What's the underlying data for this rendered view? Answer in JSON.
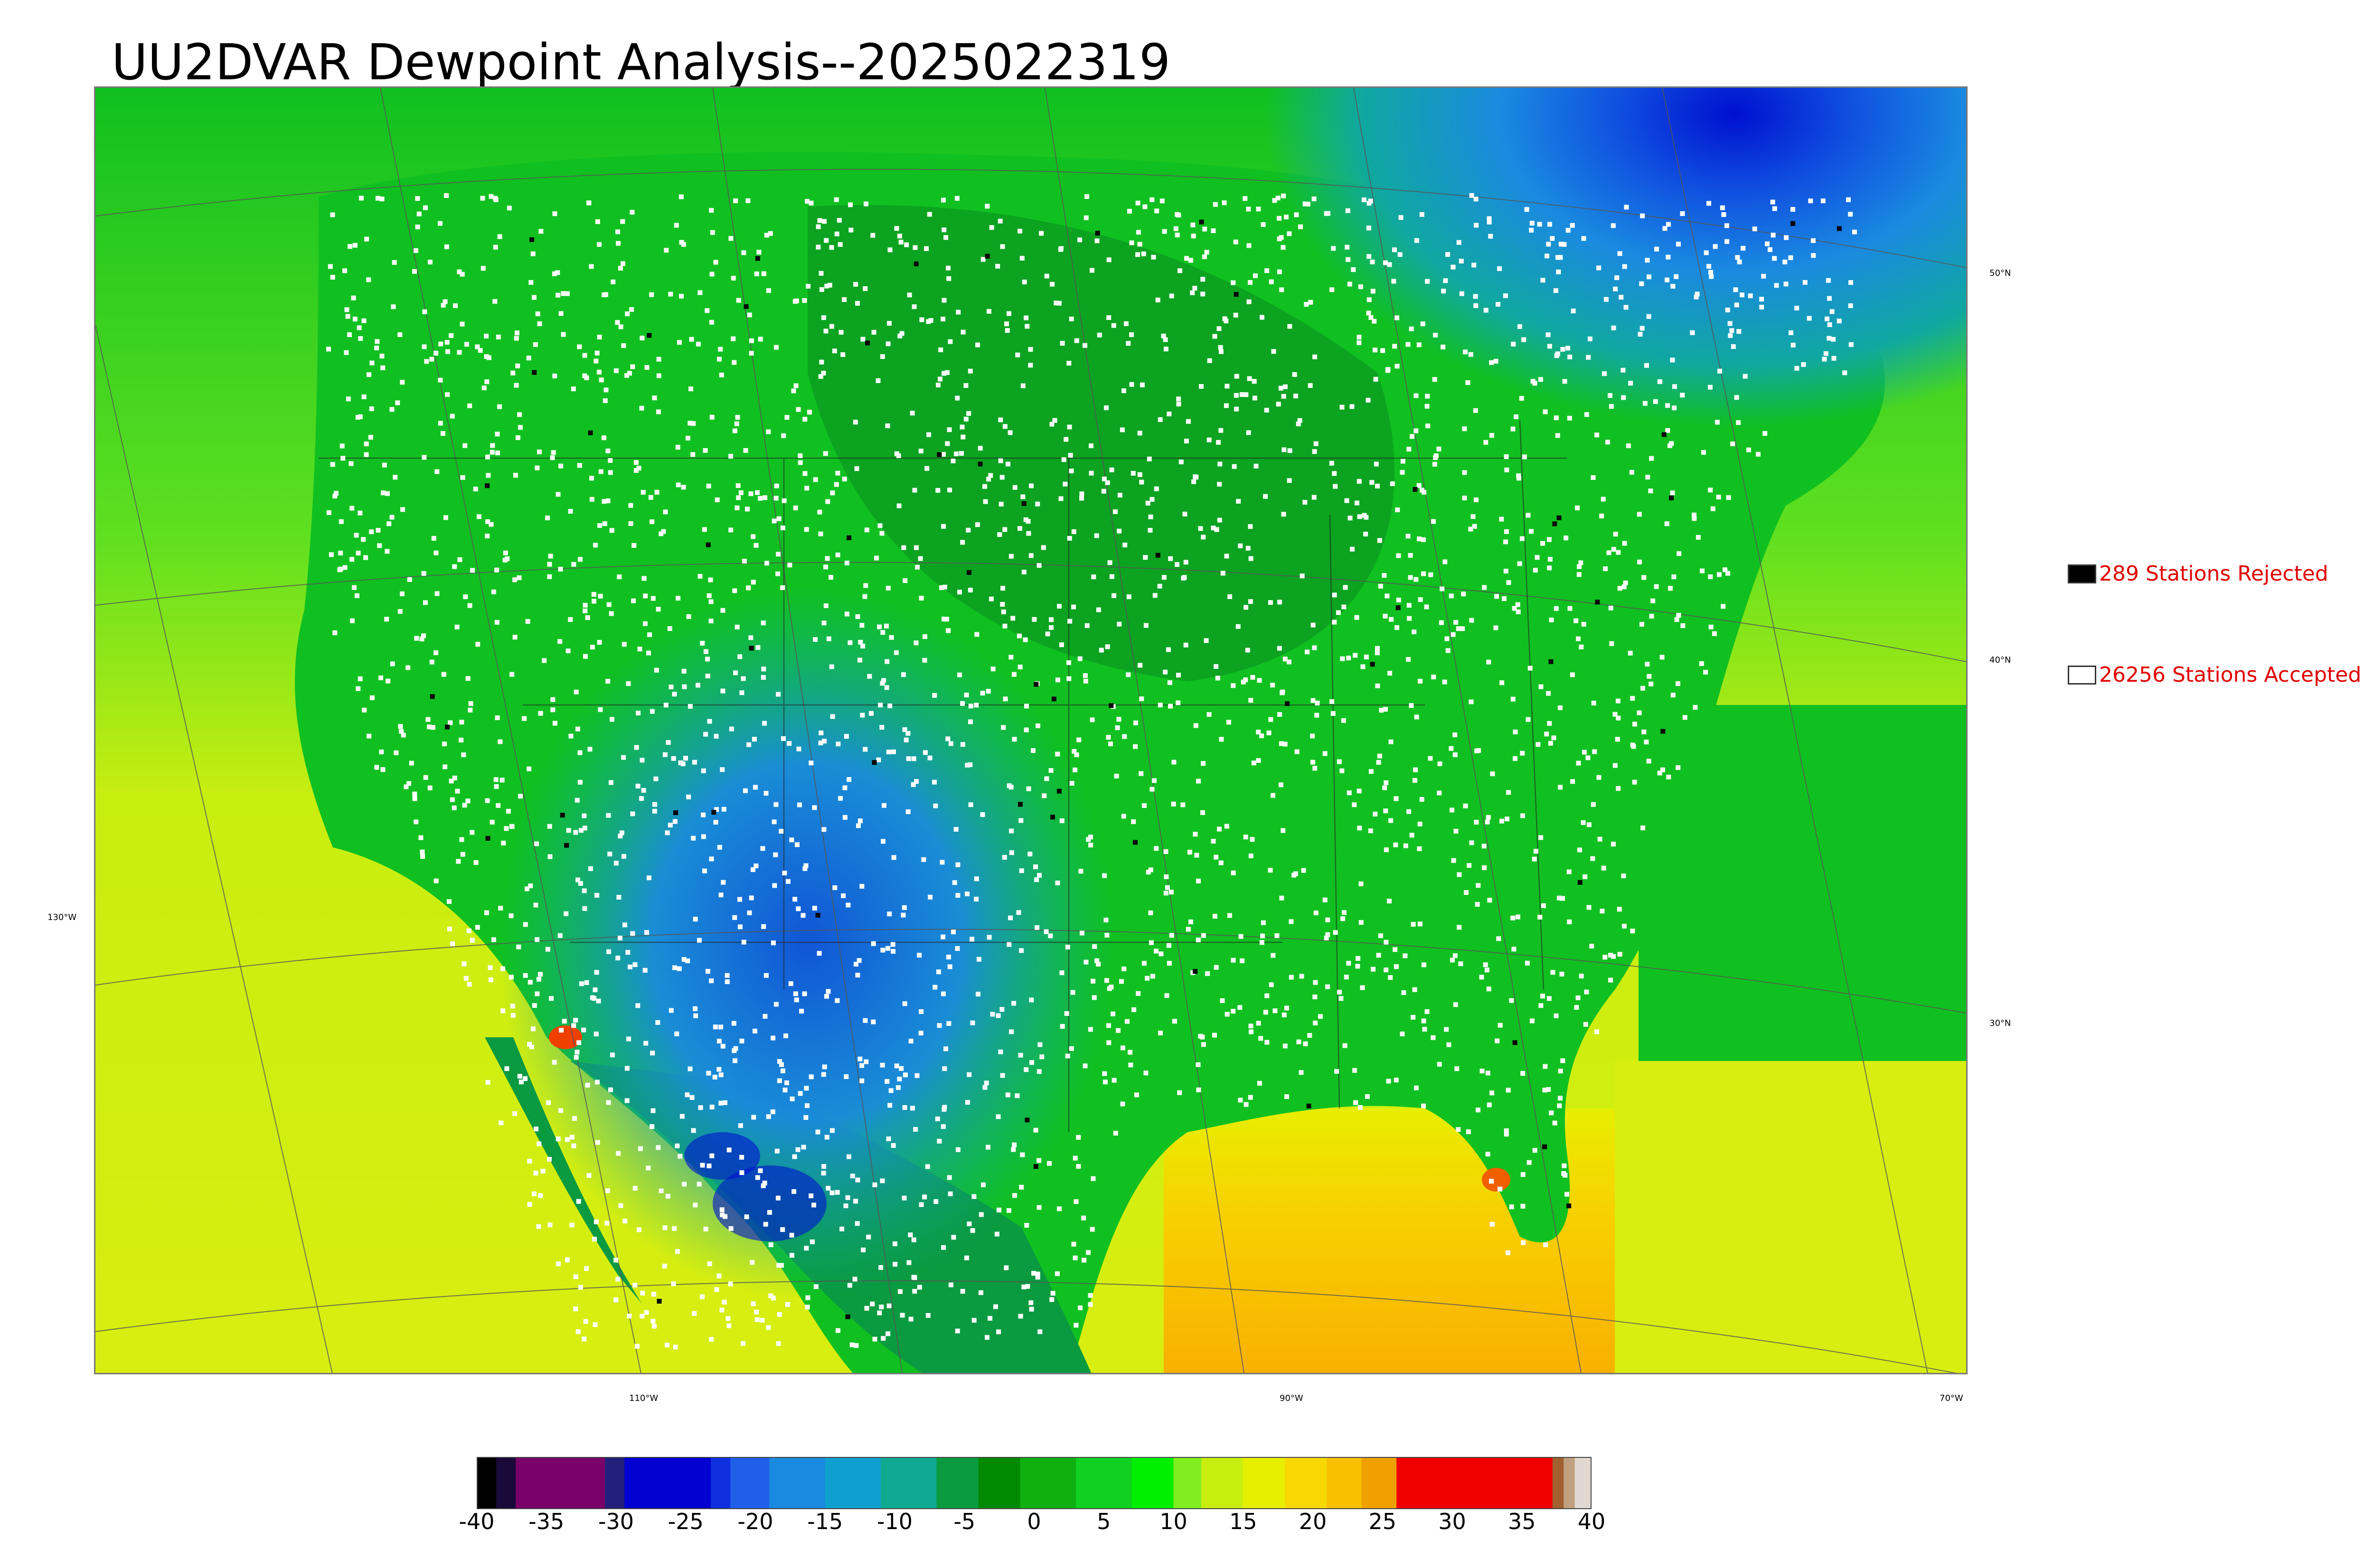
{
  "title": "UU2DVAR Dewpoint Analysis--2025022319",
  "graticule": {
    "lat_labels": [
      "50°N",
      "40°N",
      "30°N"
    ],
    "lon_labels": [
      "130°W",
      "110°W",
      "90°W",
      "70°W"
    ]
  },
  "legend": {
    "rejected": {
      "label": "289 Stations Rejected",
      "count": 289,
      "color": "#000000"
    },
    "accepted": {
      "label": "26256 Stations Accepted",
      "count": 26256,
      "color": "#ffffff"
    }
  },
  "colorbar": {
    "min": -40,
    "max": 40,
    "ticks": [
      "-40",
      "-35",
      "-30",
      "-25",
      "-20",
      "-15",
      "-10",
      "-5",
      "0",
      "5",
      "10",
      "15",
      "20",
      "25",
      "30",
      "35",
      "40"
    ],
    "segments": [
      {
        "from": -40,
        "to": -38.6,
        "color": "#000000"
      },
      {
        "from": -38.6,
        "to": -37.2,
        "color": "#1a0a3a"
      },
      {
        "from": -37.2,
        "to": -30.8,
        "color": "#7a006a"
      },
      {
        "from": -30.8,
        "to": -29.4,
        "color": "#22207a"
      },
      {
        "from": -29.4,
        "to": -23.2,
        "color": "#0000d0"
      },
      {
        "from": -23.2,
        "to": -21.8,
        "color": "#1030e0"
      },
      {
        "from": -21.8,
        "to": -19,
        "color": "#2060e8"
      },
      {
        "from": -19,
        "to": -15,
        "color": "#1a8ae0"
      },
      {
        "from": -15,
        "to": -11,
        "color": "#10a0d0"
      },
      {
        "from": -11,
        "to": -7,
        "color": "#10a890"
      },
      {
        "from": -7,
        "to": -4,
        "color": "#0a9a40"
      },
      {
        "from": -4,
        "to": -1,
        "color": "#008a00"
      },
      {
        "from": -1,
        "to": 3,
        "color": "#10b010"
      },
      {
        "from": 3,
        "to": 7,
        "color": "#10d020"
      },
      {
        "from": 7,
        "to": 10,
        "color": "#00ee00"
      },
      {
        "from": 10,
        "to": 12,
        "color": "#80ee20"
      },
      {
        "from": 12,
        "to": 15,
        "color": "#c8ee10"
      },
      {
        "from": 15,
        "to": 18,
        "color": "#e8ee00"
      },
      {
        "from": 18,
        "to": 21,
        "color": "#f8d800"
      },
      {
        "from": 21,
        "to": 23.5,
        "color": "#f8c000"
      },
      {
        "from": 23.5,
        "to": 26,
        "color": "#f0a000"
      },
      {
        "from": 26,
        "to": 37.2,
        "color": "#f00000"
      },
      {
        "from": 37.2,
        "to": 38,
        "color": "#a06030"
      },
      {
        "from": 38,
        "to": 38.8,
        "color": "#c0a080"
      },
      {
        "from": 38.8,
        "to": 40,
        "color": "#e0d8d0"
      }
    ]
  },
  "field_colors": {
    "land_green": "#10c020",
    "dark_green": "#0a9a20",
    "ocean_yellow": "#d8ee10",
    "gulf_orange": "#f8c000",
    "cold_blue": "#1a8ae0",
    "deep_blue": "#0010d0",
    "teal": "#10a8a0"
  }
}
